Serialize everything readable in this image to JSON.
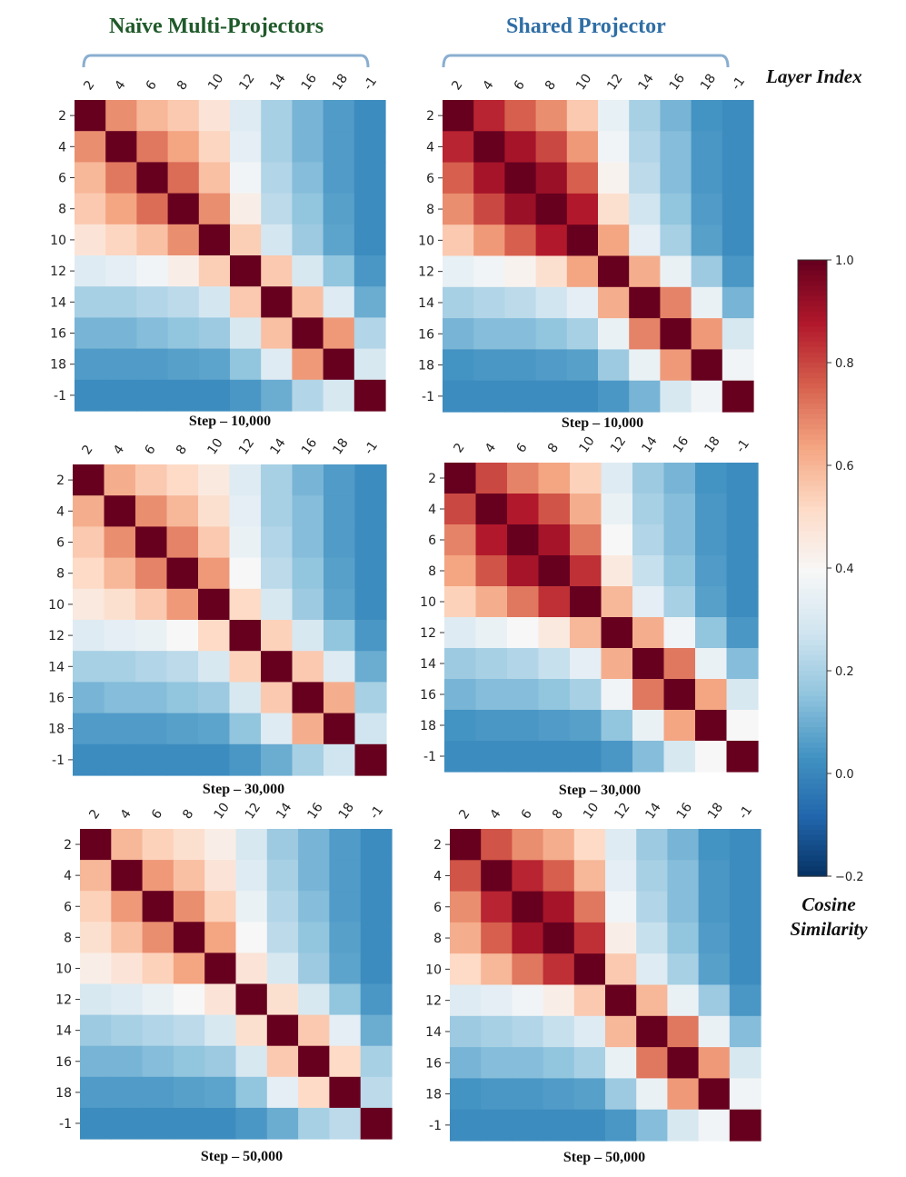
{
  "titles": {
    "left": "Naïve Multi-Projectors",
    "right": "Shared Projector",
    "axis_label": "Layer Index",
    "colorbar_label_line1": "Cosine",
    "colorbar_label_line2": "Similarity"
  },
  "colors": {
    "left_title": "#1f5a2a",
    "right_title": "#2f6ea5",
    "bracket": "#8aaed0",
    "colormap": "RdBu_r"
  },
  "chart_data": [
    {
      "type": "heatmap",
      "panel": "naive-step-10000",
      "title": "Step – 10,000",
      "x_labels": [
        "2",
        "4",
        "6",
        "8",
        "10",
        "12",
        "14",
        "16",
        "18",
        "-1"
      ],
      "y_labels": [
        "2",
        "4",
        "6",
        "8",
        "10",
        "12",
        "14",
        "16",
        "18",
        "-1"
      ],
      "vmin": -0.2,
      "vmax": 1.0,
      "values": [
        [
          1.0,
          0.68,
          0.6,
          0.56,
          0.48,
          0.32,
          0.2,
          0.12,
          0.06,
          0.02
        ],
        [
          0.68,
          1.0,
          0.72,
          0.64,
          0.53,
          0.34,
          0.2,
          0.12,
          0.06,
          0.02
        ],
        [
          0.6,
          0.72,
          1.0,
          0.74,
          0.58,
          0.38,
          0.22,
          0.14,
          0.06,
          0.02
        ],
        [
          0.56,
          0.64,
          0.74,
          1.0,
          0.68,
          0.44,
          0.24,
          0.16,
          0.07,
          0.02
        ],
        [
          0.48,
          0.53,
          0.58,
          0.68,
          1.0,
          0.55,
          0.29,
          0.18,
          0.08,
          0.02
        ],
        [
          0.32,
          0.34,
          0.38,
          0.44,
          0.55,
          1.0,
          0.56,
          0.3,
          0.16,
          0.05
        ],
        [
          0.2,
          0.2,
          0.22,
          0.24,
          0.29,
          0.56,
          1.0,
          0.58,
          0.32,
          0.1
        ],
        [
          0.12,
          0.12,
          0.14,
          0.16,
          0.18,
          0.3,
          0.58,
          1.0,
          0.66,
          0.22
        ],
        [
          0.06,
          0.06,
          0.06,
          0.07,
          0.08,
          0.16,
          0.32,
          0.66,
          1.0,
          0.3
        ],
        [
          0.02,
          0.02,
          0.02,
          0.02,
          0.02,
          0.05,
          0.1,
          0.22,
          0.3,
          1.0
        ]
      ]
    },
    {
      "type": "heatmap",
      "panel": "shared-step-10000",
      "title": "Step – 10,000",
      "x_labels": [
        "2",
        "4",
        "6",
        "8",
        "10",
        "12",
        "14",
        "16",
        "18",
        "-1"
      ],
      "y_labels": [
        "2",
        "4",
        "6",
        "8",
        "10",
        "12",
        "14",
        "16",
        "18",
        "-1"
      ],
      "vmin": -0.2,
      "vmax": 1.0,
      "values": [
        [
          1.0,
          0.86,
          0.76,
          0.68,
          0.56,
          0.35,
          0.2,
          0.12,
          0.04,
          0.02
        ],
        [
          0.86,
          1.0,
          0.9,
          0.8,
          0.66,
          0.38,
          0.22,
          0.14,
          0.05,
          0.02
        ],
        [
          0.76,
          0.9,
          1.0,
          0.92,
          0.76,
          0.42,
          0.24,
          0.14,
          0.05,
          0.02
        ],
        [
          0.68,
          0.8,
          0.92,
          1.0,
          0.88,
          0.5,
          0.28,
          0.16,
          0.06,
          0.02
        ],
        [
          0.56,
          0.66,
          0.76,
          0.88,
          1.0,
          0.64,
          0.34,
          0.2,
          0.07,
          0.02
        ],
        [
          0.35,
          0.38,
          0.42,
          0.5,
          0.64,
          1.0,
          0.62,
          0.36,
          0.18,
          0.05
        ],
        [
          0.2,
          0.22,
          0.24,
          0.28,
          0.34,
          0.62,
          1.0,
          0.7,
          0.36,
          0.12
        ],
        [
          0.12,
          0.14,
          0.14,
          0.16,
          0.2,
          0.36,
          0.7,
          1.0,
          0.66,
          0.3
        ],
        [
          0.04,
          0.05,
          0.05,
          0.06,
          0.07,
          0.18,
          0.36,
          0.66,
          1.0,
          0.38
        ],
        [
          0.02,
          0.02,
          0.02,
          0.02,
          0.02,
          0.05,
          0.12,
          0.3,
          0.38,
          1.0
        ]
      ]
    },
    {
      "type": "heatmap",
      "panel": "naive-step-30000",
      "title": "Step – 30,000",
      "x_labels": [
        "2",
        "4",
        "6",
        "8",
        "10",
        "12",
        "14",
        "16",
        "18",
        "-1"
      ],
      "y_labels": [
        "2",
        "4",
        "6",
        "8",
        "10",
        "12",
        "14",
        "16",
        "18",
        "-1"
      ],
      "vmin": -0.2,
      "vmax": 1.0,
      "values": [
        [
          1.0,
          0.62,
          0.56,
          0.52,
          0.46,
          0.32,
          0.2,
          0.12,
          0.06,
          0.02
        ],
        [
          0.62,
          1.0,
          0.68,
          0.6,
          0.5,
          0.34,
          0.2,
          0.14,
          0.06,
          0.02
        ],
        [
          0.56,
          0.68,
          1.0,
          0.7,
          0.56,
          0.36,
          0.22,
          0.14,
          0.06,
          0.02
        ],
        [
          0.52,
          0.6,
          0.7,
          1.0,
          0.66,
          0.4,
          0.24,
          0.16,
          0.07,
          0.02
        ],
        [
          0.46,
          0.5,
          0.56,
          0.66,
          1.0,
          0.52,
          0.3,
          0.18,
          0.08,
          0.02
        ],
        [
          0.32,
          0.34,
          0.36,
          0.4,
          0.52,
          1.0,
          0.54,
          0.3,
          0.16,
          0.05
        ],
        [
          0.2,
          0.2,
          0.22,
          0.24,
          0.3,
          0.54,
          1.0,
          0.56,
          0.32,
          0.1
        ],
        [
          0.12,
          0.14,
          0.14,
          0.16,
          0.18,
          0.3,
          0.56,
          1.0,
          0.62,
          0.2
        ],
        [
          0.06,
          0.06,
          0.06,
          0.07,
          0.08,
          0.16,
          0.32,
          0.62,
          1.0,
          0.28
        ],
        [
          0.02,
          0.02,
          0.02,
          0.02,
          0.02,
          0.05,
          0.1,
          0.2,
          0.28,
          1.0
        ]
      ]
    },
    {
      "type": "heatmap",
      "panel": "shared-step-30000",
      "title": "Step – 30,000",
      "x_labels": [
        "2",
        "4",
        "6",
        "8",
        "10",
        "12",
        "14",
        "16",
        "18",
        "-1"
      ],
      "y_labels": [
        "2",
        "4",
        "6",
        "8",
        "10",
        "12",
        "14",
        "16",
        "18",
        "-1"
      ],
      "vmin": -0.2,
      "vmax": 1.0,
      "values": [
        [
          1.0,
          0.8,
          0.7,
          0.64,
          0.54,
          0.32,
          0.18,
          0.12,
          0.04,
          0.02
        ],
        [
          0.8,
          1.0,
          0.88,
          0.78,
          0.62,
          0.36,
          0.2,
          0.14,
          0.05,
          0.02
        ],
        [
          0.7,
          0.88,
          1.0,
          0.9,
          0.72,
          0.4,
          0.22,
          0.14,
          0.05,
          0.02
        ],
        [
          0.64,
          0.78,
          0.9,
          1.0,
          0.84,
          0.46,
          0.26,
          0.16,
          0.06,
          0.02
        ],
        [
          0.54,
          0.62,
          0.72,
          0.84,
          1.0,
          0.6,
          0.34,
          0.2,
          0.07,
          0.02
        ],
        [
          0.32,
          0.36,
          0.4,
          0.46,
          0.6,
          1.0,
          0.62,
          0.38,
          0.16,
          0.05
        ],
        [
          0.18,
          0.2,
          0.22,
          0.26,
          0.34,
          0.62,
          1.0,
          0.72,
          0.36,
          0.14
        ],
        [
          0.12,
          0.14,
          0.14,
          0.16,
          0.2,
          0.38,
          0.72,
          1.0,
          0.64,
          0.3
        ],
        [
          0.04,
          0.05,
          0.05,
          0.06,
          0.07,
          0.16,
          0.36,
          0.64,
          1.0,
          0.4
        ],
        [
          0.02,
          0.02,
          0.02,
          0.02,
          0.02,
          0.05,
          0.14,
          0.3,
          0.4,
          1.0
        ]
      ]
    },
    {
      "type": "heatmap",
      "panel": "naive-step-50000",
      "title": "Step – 50,000",
      "x_labels": [
        "2",
        "4",
        "6",
        "8",
        "10",
        "12",
        "14",
        "16",
        "18",
        "-1"
      ],
      "y_labels": [
        "2",
        "4",
        "6",
        "8",
        "10",
        "12",
        "14",
        "16",
        "18",
        "-1"
      ],
      "vmin": -0.2,
      "vmax": 1.0,
      "values": [
        [
          1.0,
          0.6,
          0.54,
          0.5,
          0.44,
          0.3,
          0.18,
          0.12,
          0.06,
          0.02
        ],
        [
          0.6,
          1.0,
          0.66,
          0.58,
          0.48,
          0.32,
          0.2,
          0.12,
          0.06,
          0.02
        ],
        [
          0.54,
          0.66,
          1.0,
          0.68,
          0.54,
          0.36,
          0.22,
          0.14,
          0.06,
          0.02
        ],
        [
          0.5,
          0.58,
          0.68,
          1.0,
          0.64,
          0.4,
          0.24,
          0.16,
          0.07,
          0.02
        ],
        [
          0.44,
          0.48,
          0.54,
          0.64,
          1.0,
          0.48,
          0.3,
          0.18,
          0.08,
          0.02
        ],
        [
          0.3,
          0.32,
          0.36,
          0.4,
          0.48,
          1.0,
          0.5,
          0.3,
          0.16,
          0.05
        ],
        [
          0.18,
          0.2,
          0.22,
          0.24,
          0.3,
          0.5,
          1.0,
          0.56,
          0.34,
          0.1
        ],
        [
          0.12,
          0.12,
          0.14,
          0.16,
          0.18,
          0.3,
          0.56,
          1.0,
          0.52,
          0.2
        ],
        [
          0.06,
          0.06,
          0.06,
          0.07,
          0.08,
          0.16,
          0.34,
          0.52,
          1.0,
          0.24
        ],
        [
          0.02,
          0.02,
          0.02,
          0.02,
          0.02,
          0.05,
          0.1,
          0.2,
          0.24,
          1.0
        ]
      ]
    },
    {
      "type": "heatmap",
      "panel": "shared-step-50000",
      "title": "Step – 50,000",
      "x_labels": [
        "2",
        "4",
        "6",
        "8",
        "10",
        "12",
        "14",
        "16",
        "18",
        "-1"
      ],
      "y_labels": [
        "2",
        "4",
        "6",
        "8",
        "10",
        "12",
        "14",
        "16",
        "18",
        "-1"
      ],
      "vmin": -0.2,
      "vmax": 1.0,
      "values": [
        [
          1.0,
          0.78,
          0.68,
          0.62,
          0.52,
          0.32,
          0.18,
          0.12,
          0.04,
          0.02
        ],
        [
          0.78,
          1.0,
          0.86,
          0.76,
          0.6,
          0.34,
          0.2,
          0.14,
          0.05,
          0.02
        ],
        [
          0.68,
          0.86,
          1.0,
          0.9,
          0.72,
          0.38,
          0.22,
          0.14,
          0.05,
          0.02
        ],
        [
          0.62,
          0.76,
          0.9,
          1.0,
          0.84,
          0.44,
          0.26,
          0.16,
          0.06,
          0.02
        ],
        [
          0.52,
          0.6,
          0.72,
          0.84,
          1.0,
          0.56,
          0.32,
          0.2,
          0.07,
          0.02
        ],
        [
          0.32,
          0.34,
          0.38,
          0.44,
          0.56,
          1.0,
          0.6,
          0.36,
          0.18,
          0.05
        ],
        [
          0.18,
          0.2,
          0.22,
          0.26,
          0.32,
          0.6,
          1.0,
          0.72,
          0.36,
          0.14
        ],
        [
          0.12,
          0.14,
          0.14,
          0.16,
          0.2,
          0.36,
          0.72,
          1.0,
          0.66,
          0.3
        ],
        [
          0.04,
          0.05,
          0.05,
          0.06,
          0.07,
          0.18,
          0.36,
          0.66,
          1.0,
          0.38
        ],
        [
          0.02,
          0.02,
          0.02,
          0.02,
          0.02,
          0.05,
          0.14,
          0.3,
          0.38,
          1.0
        ]
      ]
    }
  ],
  "colorbar": {
    "vmin": -0.2,
    "vmax": 1.0,
    "tick_values": [
      1.0,
      0.8,
      0.6,
      0.4,
      0.2,
      0.0,
      -0.2
    ],
    "tick_labels": [
      "1.0",
      "0.8",
      "0.6",
      "0.4",
      "0.2",
      "0.0",
      "−0.2"
    ]
  }
}
